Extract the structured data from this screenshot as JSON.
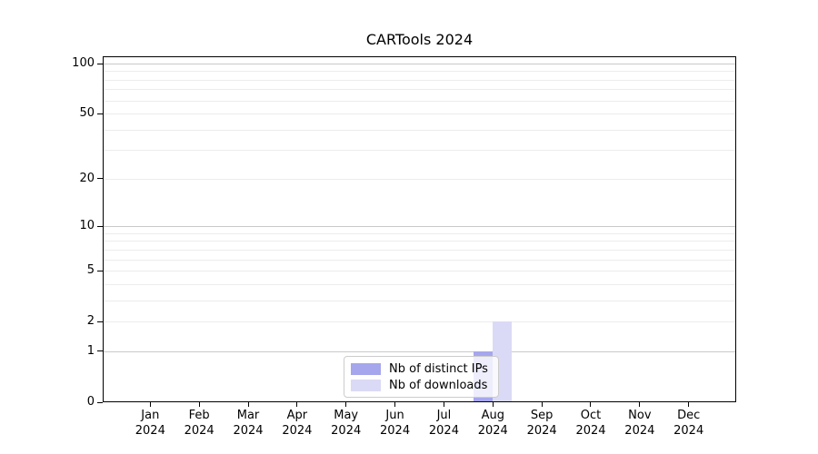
{
  "chart_data": {
    "type": "bar",
    "title": "CARTools 2024",
    "categories": [
      "Jan",
      "Feb",
      "Mar",
      "Apr",
      "May",
      "Jun",
      "Jul",
      "Aug",
      "Sep",
      "Oct",
      "Nov",
      "Dec"
    ],
    "category_year": "2024",
    "series": [
      {
        "name": "Nb of distinct IPs",
        "color": "#a6a6ed",
        "values": [
          0,
          0,
          0,
          0,
          0,
          0,
          0,
          1,
          0,
          0,
          0,
          0
        ]
      },
      {
        "name": "Nb of downloads",
        "color": "#dadaf6",
        "values": [
          0,
          0,
          0,
          0,
          0,
          0,
          0,
          2,
          0,
          0,
          0,
          0
        ]
      }
    ],
    "xlabel": "",
    "ylabel": "",
    "y_scale": "log1p",
    "y_ticks": [
      0,
      1,
      2,
      5,
      10,
      20,
      50,
      100
    ],
    "y_max": 110,
    "grid": {
      "major": [
        1,
        10,
        100
      ],
      "minor": [
        2,
        3,
        4,
        5,
        6,
        7,
        8,
        9,
        20,
        30,
        40,
        50,
        60,
        70,
        80,
        90
      ],
      "major_color": "#c9c9c9",
      "minor_color": "#ececec"
    },
    "legend": {
      "position": "lower center inside",
      "background": "rgba(255,255,255,0.8)",
      "border_color": "#cccccc"
    }
  }
}
